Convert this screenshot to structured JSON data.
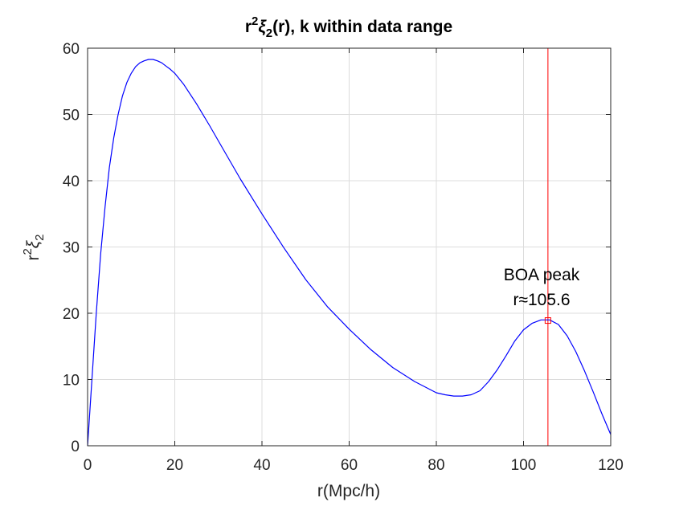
{
  "chart_data": {
    "type": "line",
    "title": "r²ξ₂(r), k within data range",
    "title_parts": {
      "a": "r",
      "a_sup": "2",
      "b": "ξ",
      "b_sub": "2",
      "c": "(r), k within data range"
    },
    "xlabel": "r(Mpc/h)",
    "ylabel": "r²ξ₂",
    "ylabel_parts": {
      "a": "r",
      "a_sup": "2",
      "b": "ξ",
      "b_sub": "2"
    },
    "xlim": [
      0,
      120
    ],
    "ylim": [
      0,
      60
    ],
    "xticks": [
      "0",
      "20",
      "40",
      "60",
      "80",
      "100",
      "120"
    ],
    "yticks": [
      "0",
      "10",
      "20",
      "30",
      "40",
      "50",
      "60"
    ],
    "grid": true,
    "series": [
      {
        "color": "#0000ff",
        "x": [
          0,
          1,
          2,
          3,
          4,
          5,
          6,
          7,
          8,
          9,
          10,
          11,
          12,
          13,
          14,
          15,
          16,
          17,
          18,
          19,
          20,
          22,
          25,
          28,
          30,
          35,
          40,
          45,
          50,
          55,
          60,
          65,
          70,
          75,
          80,
          82,
          84,
          86,
          88,
          90,
          92,
          94,
          96,
          98,
          100,
          102,
          104,
          106,
          108,
          110,
          112,
          114,
          116,
          118,
          120
        ],
        "y": [
          0,
          10,
          20,
          29,
          36,
          42,
          46.5,
          50,
          52.8,
          54.8,
          56.2,
          57.2,
          57.8,
          58.1,
          58.3,
          58.3,
          58.1,
          57.8,
          57.3,
          56.8,
          56.2,
          54.6,
          51.6,
          48.3,
          46.0,
          40.3,
          35.0,
          29.9,
          25.1,
          21.0,
          17.6,
          14.5,
          11.8,
          9.7,
          8.0,
          7.7,
          7.5,
          7.5,
          7.7,
          8.3,
          9.7,
          11.5,
          13.6,
          15.8,
          17.5,
          18.5,
          19.0,
          19.0,
          18.3,
          16.6,
          14.2,
          11.3,
          8.1,
          4.8,
          1.7
        ]
      }
    ],
    "marker": {
      "x": 105.6,
      "y": 18.9,
      "shape": "square",
      "color": "#ff0000"
    },
    "vline": {
      "x": 105.6,
      "color": "#ff0000"
    },
    "annotation": {
      "line1": "BOA peak",
      "line2": "r≈105.6",
      "x": 103.5,
      "y1": 25.5,
      "y2": 21.7
    }
  }
}
